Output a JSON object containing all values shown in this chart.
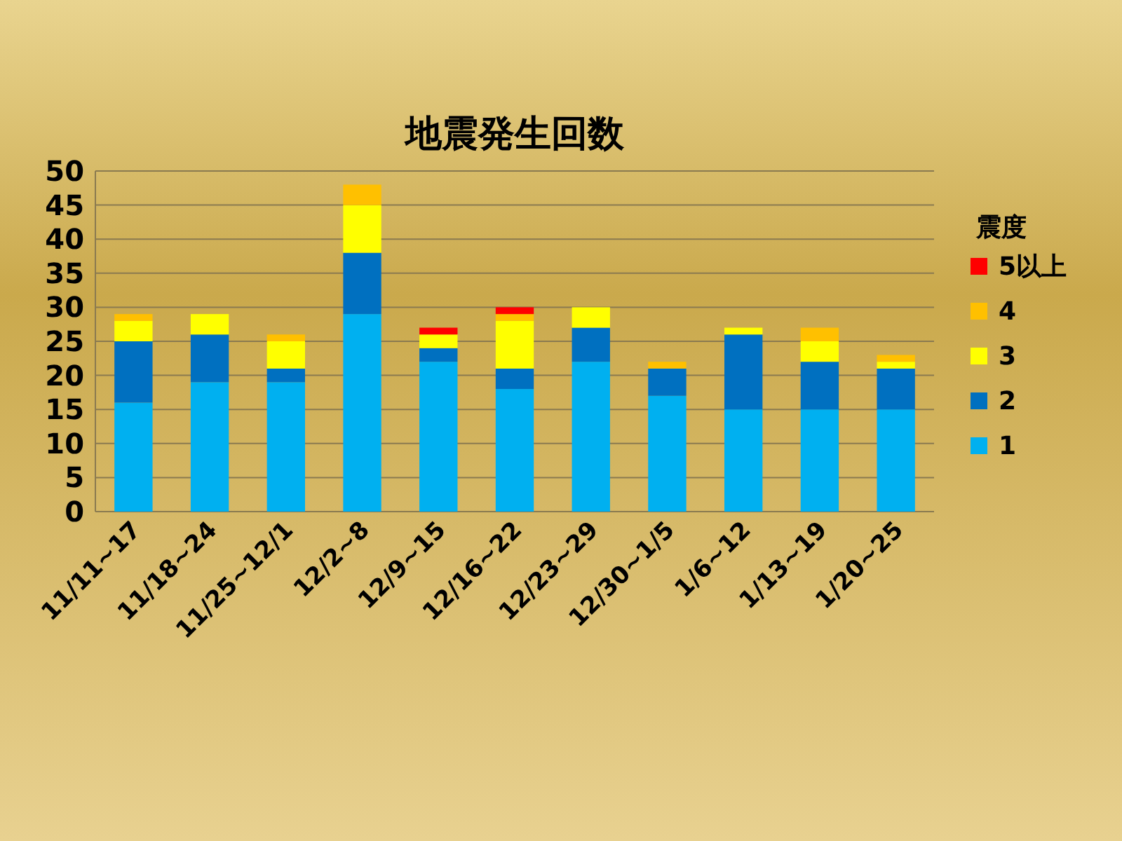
{
  "chart_data": {
    "type": "bar",
    "title": "地震発生回数",
    "legend_title": "震度",
    "stacked": true,
    "legend": "right",
    "grid": "y",
    "categories": [
      "11/11~17",
      "11/18~24",
      "11/25~12/1",
      "12/2~8",
      "12/9~15",
      "12/16~22",
      "12/23~29",
      "12/30~1/5",
      "1/6~12",
      "1/13~19",
      "1/20~25"
    ],
    "ylim": [
      0,
      50
    ],
    "yticks": [
      0,
      5,
      10,
      15,
      20,
      25,
      30,
      35,
      40,
      45,
      50
    ],
    "series": [
      {
        "name": "1",
        "color": "#00b0f0",
        "values": [
          16,
          19,
          19,
          29,
          22,
          18,
          22,
          17,
          15,
          15,
          15
        ]
      },
      {
        "name": "2",
        "color": "#0070c0",
        "values": [
          9,
          7,
          2,
          9,
          2,
          3,
          5,
          4,
          11,
          7,
          6
        ]
      },
      {
        "name": "3",
        "color": "#ffff00",
        "values": [
          3,
          3,
          4,
          7,
          2,
          7,
          3,
          0,
          1,
          3,
          1
        ]
      },
      {
        "name": "4",
        "color": "#ffc000",
        "values": [
          1,
          0,
          1,
          3,
          0,
          1,
          0,
          1,
          0,
          2,
          1
        ]
      },
      {
        "name": "5以上",
        "color": "#ff0000",
        "values": [
          0,
          0,
          0,
          0,
          1,
          1,
          0,
          0,
          0,
          0,
          0
        ]
      }
    ]
  }
}
